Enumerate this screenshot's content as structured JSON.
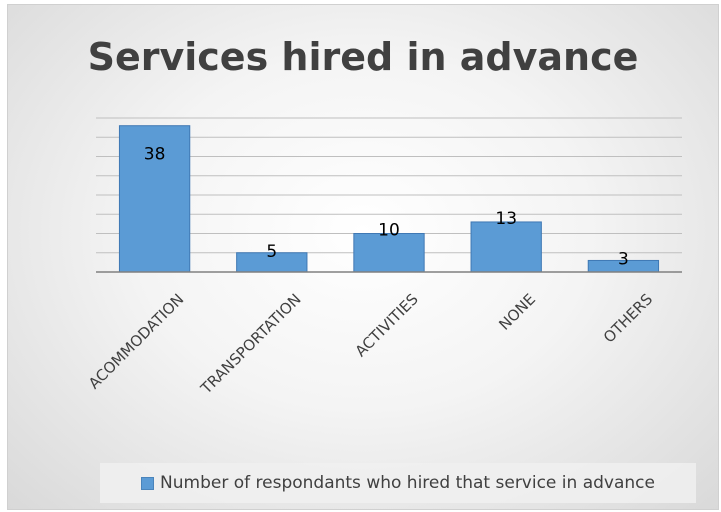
{
  "chart_data": {
    "type": "bar",
    "title": "Services hired in advance",
    "categories": [
      "ACOMMODATION",
      "TRANSPORTATION",
      "ACTIVITIES",
      "NONE",
      "OTHERS"
    ],
    "series": [
      {
        "name": "Number of respondants who hired that service in advance",
        "values": [
          38,
          5,
          10,
          13,
          3
        ]
      }
    ],
    "ylim": [
      0,
      40
    ],
    "ytick_step": 5,
    "grid": true,
    "y_axis_labels_visible": false,
    "data_labels": true,
    "legend_position": "bottom",
    "bar_color": "#5b9bd5",
    "bar_edge_color": "#3f78b4",
    "gridline_color": "#bfbfbf"
  }
}
